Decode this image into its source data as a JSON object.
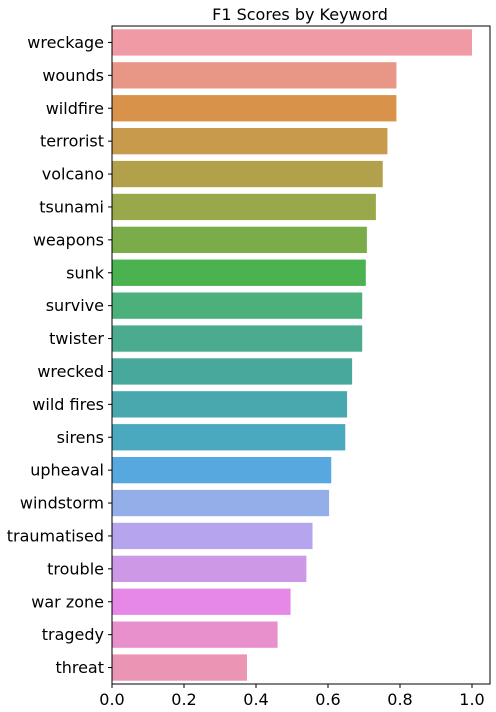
{
  "chart_data": {
    "type": "bar",
    "orientation": "horizontal",
    "title": "F1 Scores by Keyword",
    "xlabel": "",
    "ylabel": "",
    "xlim": [
      0,
      1.05
    ],
    "xticks": [
      0.0,
      0.2,
      0.4,
      0.6,
      0.8,
      1.0
    ],
    "xtick_labels": [
      "0.0",
      "0.2",
      "0.4",
      "0.6",
      "0.8",
      "1.0"
    ],
    "grid": false,
    "legend": "none",
    "categories": [
      "wreckage",
      "wounds",
      "wildfire",
      "terrorist",
      "volcano",
      "tsunami",
      "weapons",
      "sunk",
      "survive",
      "twister",
      "wrecked",
      "wild fires",
      "sirens",
      "upheaval",
      "windstorm",
      "traumatised",
      "trouble",
      "war zone",
      "tragedy",
      "threat"
    ],
    "values": [
      1.0,
      0.79,
      0.79,
      0.765,
      0.752,
      0.733,
      0.708,
      0.705,
      0.695,
      0.695,
      0.667,
      0.653,
      0.648,
      0.609,
      0.603,
      0.557,
      0.54,
      0.496,
      0.46,
      0.375
    ],
    "colors": [
      "#ef9aa5",
      "#e89686",
      "#d9924a",
      "#c89a4c",
      "#b3a04a",
      "#98a84a",
      "#7aac4a",
      "#4ab24e",
      "#4bb07a",
      "#4aab8e",
      "#49a89c",
      "#48a8ae",
      "#4aa9bf",
      "#56a8de",
      "#94aeea",
      "#b6a5ee",
      "#cd98e6",
      "#e689e6",
      "#e890cc",
      "#ea95b4"
    ]
  }
}
